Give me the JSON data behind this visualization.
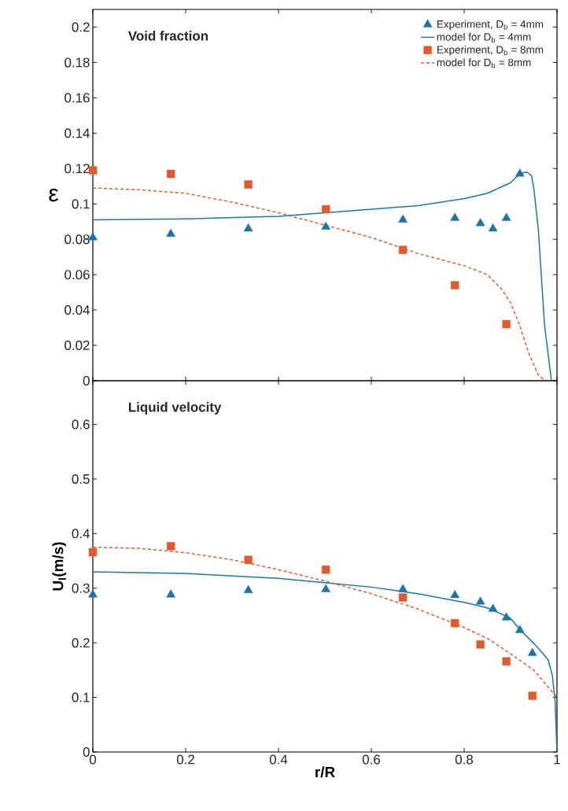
{
  "chart_data": [
    {
      "type": "scatter",
      "title": "Void fraction",
      "ylabel": "ε",
      "xlim": [
        0,
        1
      ],
      "ylim": [
        0,
        0.21
      ],
      "xticks": [
        0,
        0.2,
        0.4,
        0.6,
        0.8,
        1
      ],
      "yticks": [
        0,
        0.02,
        0.04,
        0.06,
        0.08,
        0.1,
        0.12,
        0.14,
        0.16,
        0.18,
        0.2
      ],
      "tick_labels": "y",
      "grid": false,
      "legend": "top right",
      "series": [
        {
          "name": "Experiment, D$_{b}$ = 4mm",
          "marker": "triangle",
          "color": "#1a75a8",
          "x": [
            0,
            0.168,
            0.335,
            0.502,
            0.668,
            0.78,
            0.835,
            0.862,
            0.891,
            0.92
          ],
          "values": [
            0.081,
            0.083,
            0.086,
            0.087,
            0.091,
            0.092,
            0.089,
            0.086,
            0.092,
            0.117
          ]
        },
        {
          "name": "model for D$_{b}$ = 4mm",
          "type": "line",
          "marker": "none",
          "line_style": "solid",
          "color": "#1a75a8",
          "x": [
            0,
            0.2,
            0.4,
            0.5,
            0.6,
            0.7,
            0.8,
            0.85,
            0.9,
            0.92,
            0.935,
            0.945,
            0.95,
            0.96,
            0.973,
            0.988
          ],
          "values": [
            0.091,
            0.0915,
            0.093,
            0.095,
            0.097,
            0.099,
            0.103,
            0.106,
            0.112,
            0.117,
            0.118,
            0.116,
            0.109,
            0.085,
            0.032,
            0
          ]
        },
        {
          "name": "Experiment, D$_{b}$ = 8mm",
          "marker": "square",
          "color": "#e05a2b",
          "x": [
            0,
            0.168,
            0.335,
            0.502,
            0.668,
            0.78,
            0.891
          ],
          "values": [
            0.119,
            0.117,
            0.111,
            0.097,
            0.074,
            0.054,
            0.032
          ]
        },
        {
          "name": "model for D$_{b}$ = 8mm",
          "type": "line",
          "marker": "none",
          "line_style": "dashed",
          "color": "#e05a2b",
          "x": [
            0,
            0.1,
            0.2,
            0.3,
            0.4,
            0.5,
            0.6,
            0.7,
            0.8,
            0.85,
            0.88,
            0.9,
            0.92,
            0.94,
            0.96,
            0.975
          ],
          "values": [
            0.109,
            0.108,
            0.106,
            0.101,
            0.095,
            0.088,
            0.081,
            0.072,
            0.065,
            0.06,
            0.052,
            0.044,
            0.031,
            0.015,
            0.003,
            0
          ]
        }
      ]
    },
    {
      "type": "scatter",
      "title": "Liquid velocity",
      "xlabel": "r/R",
      "ylabel": "U$_{l}$(m/s)",
      "xlim": [
        0,
        1
      ],
      "ylim": [
        0,
        0.68
      ],
      "xticks": [
        0,
        0.2,
        0.4,
        0.6,
        0.8,
        1
      ],
      "yticks": [
        0,
        0.1,
        0.2,
        0.3,
        0.4,
        0.5,
        0.6
      ],
      "grid": false,
      "series": [
        {
          "marker": "triangle",
          "color": "#1a75a8",
          "x": [
            0,
            0.168,
            0.335,
            0.502,
            0.668,
            0.78,
            0.835,
            0.862,
            0.891,
            0.92,
            0.947
          ],
          "values": [
            0.288,
            0.288,
            0.296,
            0.298,
            0.298,
            0.287,
            0.275,
            0.262,
            0.246,
            0.223,
            0.181
          ]
        },
        {
          "type": "line",
          "marker": "none",
          "line_style": "solid",
          "color": "#1a75a8",
          "x": [
            0,
            0.2,
            0.4,
            0.5,
            0.6,
            0.7,
            0.8,
            0.85,
            0.9,
            0.92,
            0.95,
            0.97,
            0.981,
            0.99,
            0.996,
            1
          ],
          "values": [
            0.33,
            0.327,
            0.318,
            0.31,
            0.302,
            0.29,
            0.274,
            0.264,
            0.245,
            0.224,
            0.199,
            0.18,
            0.169,
            0.14,
            0.093,
            0
          ]
        },
        {
          "marker": "square",
          "color": "#e05a2b",
          "x": [
            0,
            0.168,
            0.335,
            0.502,
            0.668,
            0.78,
            0.835,
            0.891,
            0.947
          ],
          "values": [
            0.366,
            0.377,
            0.352,
            0.334,
            0.283,
            0.236,
            0.197,
            0.166,
            0.103
          ]
        },
        {
          "type": "line",
          "marker": "none",
          "line_style": "dashed",
          "color": "#e05a2b",
          "x": [
            0,
            0.1,
            0.2,
            0.3,
            0.4,
            0.5,
            0.6,
            0.7,
            0.8,
            0.85,
            0.9,
            0.95,
            0.98,
            1
          ],
          "values": [
            0.375,
            0.373,
            0.365,
            0.352,
            0.334,
            0.313,
            0.29,
            0.262,
            0.228,
            0.208,
            0.18,
            0.15,
            0.12,
            0.1
          ]
        }
      ]
    }
  ]
}
